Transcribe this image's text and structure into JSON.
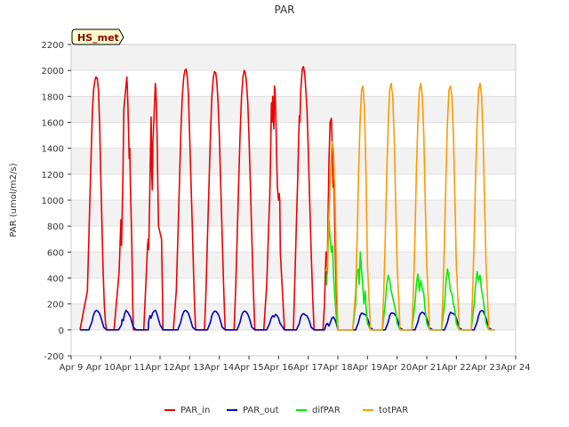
{
  "chart_data": {
    "type": "line",
    "title": "PAR",
    "xlabel": "",
    "ylabel": "PAR (umol/m2/s)",
    "xlim": [
      9,
      24
    ],
    "ylim": [
      -200,
      2200
    ],
    "x_ticks": [
      {
        "value": 9,
        "label": "Apr 9"
      },
      {
        "value": 10,
        "label": "Apr 10"
      },
      {
        "value": 11,
        "label": "Apr 11"
      },
      {
        "value": 12,
        "label": "Apr 12"
      },
      {
        "value": 13,
        "label": "Apr 13"
      },
      {
        "value": 14,
        "label": "Apr 14"
      },
      {
        "value": 15,
        "label": "Apr 15"
      },
      {
        "value": 16,
        "label": "Apr 16"
      },
      {
        "value": 17,
        "label": "Apr 17"
      },
      {
        "value": 18,
        "label": "Apr 18"
      },
      {
        "value": 19,
        "label": "Apr 19"
      },
      {
        "value": 20,
        "label": "Apr 20"
      },
      {
        "value": 21,
        "label": "Apr 21"
      },
      {
        "value": 22,
        "label": "Apr 22"
      },
      {
        "value": 23,
        "label": "Apr 23"
      },
      {
        "value": 24,
        "label": "Apr 24"
      }
    ],
    "y_ticks": [
      -200,
      0,
      200,
      400,
      600,
      800,
      1000,
      1200,
      1400,
      1600,
      1800,
      2000,
      2200
    ],
    "annotation": "HS_met",
    "legend_position": "bottom-center",
    "series": [
      {
        "name": "PAR_in",
        "color": "#ee0000",
        "x": [
          9.3,
          9.55,
          9.62,
          9.68,
          9.72,
          9.76,
          9.8,
          9.84,
          9.88,
          9.92,
          9.96,
          10.0,
          10.04,
          10.08,
          10.12,
          10.16,
          10.2,
          10.45,
          10.62,
          10.68,
          10.7,
          10.72,
          10.75,
          10.78,
          10.8,
          10.84,
          10.88,
          10.9,
          10.92,
          10.94,
          10.96,
          10.98,
          11.0,
          11.05,
          11.08,
          11.1,
          11.2,
          11.45,
          11.58,
          11.6,
          11.62,
          11.65,
          11.68,
          11.7,
          11.72,
          11.74,
          11.76,
          11.8,
          11.84,
          11.86,
          11.88,
          11.9,
          11.92,
          11.95,
          12.0,
          12.05,
          12.08,
          12.1,
          12.2,
          12.45,
          12.55,
          12.6,
          12.65,
          12.7,
          12.75,
          12.8,
          12.84,
          12.88,
          12.92,
          12.96,
          13.0,
          13.05,
          13.1,
          13.15,
          13.2,
          13.5,
          13.55,
          13.6,
          13.65,
          13.7,
          13.75,
          13.8,
          13.84,
          13.88,
          13.92,
          13.96,
          14.0,
          14.05,
          14.1,
          14.15,
          14.2,
          14.5,
          14.55,
          14.6,
          14.65,
          14.7,
          14.75,
          14.8,
          14.84,
          14.88,
          14.92,
          14.96,
          15.0,
          15.05,
          15.1,
          15.15,
          15.2,
          15.5,
          15.6,
          15.65,
          15.68,
          15.7,
          15.72,
          15.74,
          15.76,
          15.78,
          15.8,
          15.82,
          15.84,
          15.86,
          15.88,
          15.9,
          15.92,
          15.94,
          15.96,
          16.0,
          16.02,
          16.04,
          16.06,
          16.2,
          16.5,
          16.55,
          16.6,
          16.65,
          16.68,
          16.7,
          16.72,
          16.75,
          16.8,
          16.84,
          16.88,
          16.92,
          16.96,
          17.0,
          17.05,
          17.1,
          17.15,
          17.2,
          17.5,
          17.55,
          17.58,
          17.6,
          17.62,
          17.65,
          17.68,
          17.7,
          17.74,
          17.78,
          17.8,
          17.82,
          17.84,
          17.86,
          17.88,
          17.9,
          17.95,
          18.0
        ],
        "y": [
          0,
          300,
          900,
          1400,
          1700,
          1850,
          1920,
          1950,
          1940,
          1850,
          1600,
          1200,
          800,
          450,
          200,
          50,
          0,
          0,
          450,
          850,
          650,
          850,
          1200,
          1700,
          1750,
          1850,
          1950,
          1850,
          1700,
          1500,
          1320,
          1400,
          1100,
          650,
          200,
          0,
          0,
          0,
          650,
          700,
          620,
          1000,
          1400,
          1640,
          1200,
          1080,
          1450,
          1650,
          1900,
          1850,
          1700,
          1500,
          1200,
          800,
          750,
          700,
          300,
          0,
          0,
          0,
          300,
          700,
          1100,
          1500,
          1800,
          1950,
          2000,
          2010,
          1950,
          1800,
          1500,
          1100,
          700,
          300,
          0,
          0,
          300,
          700,
          1100,
          1500,
          1800,
          1950,
          1990,
          1980,
          1900,
          1750,
          1500,
          1100,
          700,
          300,
          0,
          0,
          300,
          700,
          1100,
          1500,
          1800,
          1950,
          2000,
          1980,
          1900,
          1750,
          1500,
          1100,
          700,
          300,
          0,
          0,
          350,
          700,
          900,
          1000,
          1200,
          1500,
          1750,
          1600,
          1800,
          1700,
          1550,
          1880,
          1850,
          1700,
          1500,
          1300,
          1100,
          1000,
          1050,
          1000,
          600,
          0,
          0,
          400,
          800,
          1200,
          1500,
          1650,
          1600,
          1850,
          2010,
          2030,
          1980,
          1850,
          1700,
          1400,
          1000,
          600,
          250,
          0,
          0,
          200,
          450,
          600,
          350,
          550,
          1000,
          1300,
          1600,
          1630,
          1500,
          1300,
          1100,
          1150,
          1050,
          700,
          300,
          0
        ]
      },
      {
        "name": "PAR_out",
        "color": "#0000cc",
        "x": [
          9.3,
          9.6,
          9.7,
          9.75,
          9.8,
          9.85,
          9.9,
          9.95,
          10.0,
          10.05,
          10.1,
          10.2,
          10.6,
          10.7,
          10.72,
          10.76,
          10.8,
          10.85,
          10.9,
          10.95,
          11.0,
          11.05,
          11.1,
          11.2,
          11.6,
          11.62,
          11.66,
          11.7,
          11.75,
          11.8,
          11.85,
          11.9,
          11.95,
          12.0,
          12.1,
          12.6,
          12.7,
          12.75,
          12.8,
          12.85,
          12.9,
          12.95,
          13.0,
          13.05,
          13.1,
          13.2,
          13.6,
          13.7,
          13.75,
          13.8,
          13.85,
          13.9,
          13.95,
          14.0,
          14.05,
          14.1,
          14.2,
          14.6,
          14.7,
          14.75,
          14.8,
          14.85,
          14.9,
          14.95,
          15.0,
          15.05,
          15.1,
          15.2,
          15.6,
          15.7,
          15.75,
          15.8,
          15.85,
          15.9,
          15.95,
          16.0,
          16.05,
          16.2,
          16.6,
          16.7,
          16.75,
          16.8,
          16.85,
          16.9,
          16.95,
          17.0,
          17.05,
          17.1,
          17.2,
          17.55,
          17.6,
          17.65,
          17.7,
          17.75,
          17.8,
          17.85,
          17.9,
          17.95,
          18.0,
          18.6,
          18.7,
          18.75,
          18.8,
          18.85,
          18.9,
          18.95,
          19.0,
          19.05,
          19.1,
          19.2,
          19.6,
          19.7,
          19.75,
          19.8,
          19.85,
          19.9,
          19.95,
          20.0,
          20.05,
          20.1,
          20.2,
          20.6,
          20.7,
          20.75,
          20.8,
          20.85,
          20.9,
          20.95,
          21.0,
          21.05,
          21.1,
          21.2,
          21.6,
          21.7,
          21.75,
          21.8,
          21.85,
          21.9,
          21.95,
          22.0,
          22.05,
          22.1,
          22.2,
          22.6,
          22.7,
          22.75,
          22.8,
          22.85,
          22.9,
          22.95,
          23.0,
          23.05,
          23.1,
          23.2
        ],
        "y": [
          0,
          0,
          60,
          110,
          140,
          150,
          145,
          130,
          100,
          60,
          20,
          0,
          0,
          40,
          80,
          70,
          120,
          150,
          140,
          120,
          100,
          60,
          20,
          0,
          0,
          70,
          110,
          90,
          130,
          145,
          150,
          120,
          80,
          40,
          0,
          0,
          60,
          110,
          140,
          150,
          145,
          130,
          100,
          60,
          20,
          0,
          0,
          60,
          110,
          135,
          145,
          140,
          125,
          100,
          60,
          20,
          0,
          0,
          60,
          110,
          135,
          145,
          140,
          125,
          100,
          60,
          20,
          0,
          0,
          50,
          90,
          110,
          100,
          120,
          110,
          90,
          50,
          0,
          0,
          50,
          100,
          120,
          125,
          115,
          110,
          90,
          60,
          20,
          0,
          0,
          40,
          50,
          30,
          60,
          90,
          100,
          80,
          50,
          0,
          0,
          60,
          110,
          130,
          125,
          120,
          115,
          90,
          50,
          15,
          0,
          0,
          60,
          110,
          130,
          130,
          125,
          110,
          90,
          50,
          15,
          0,
          0,
          60,
          110,
          130,
          135,
          130,
          115,
          90,
          50,
          15,
          0,
          0,
          60,
          110,
          135,
          130,
          125,
          115,
          90,
          50,
          15,
          0,
          0,
          60,
          110,
          140,
          150,
          145,
          120,
          90,
          50,
          15,
          0
        ]
      },
      {
        "name": "difPAR",
        "color": "#00ee00",
        "x": [
          17.6,
          17.65,
          17.7,
          17.74,
          17.78,
          17.82,
          17.86,
          17.9,
          17.95,
          18.0,
          18.1,
          18.5,
          18.6,
          18.65,
          18.7,
          18.72,
          18.76,
          18.8,
          18.84,
          18.88,
          18.92,
          18.96,
          19.0,
          19.1,
          19.5,
          19.6,
          19.65,
          19.7,
          19.75,
          19.8,
          19.85,
          19.9,
          19.95,
          20.0,
          20.1,
          20.5,
          20.6,
          20.65,
          20.7,
          20.75,
          20.8,
          20.85,
          20.9,
          20.95,
          21.0,
          21.1,
          21.5,
          21.6,
          21.65,
          21.7,
          21.75,
          21.8,
          21.85,
          21.9,
          21.95,
          22.0,
          22.1,
          22.5,
          22.6,
          22.65,
          22.7,
          22.75,
          22.8,
          22.85,
          22.9,
          22.95,
          23.0,
          23.1
        ],
        "y": [
          350,
          450,
          850,
          700,
          600,
          650,
          400,
          250,
          100,
          0,
          0,
          0,
          200,
          450,
          470,
          350,
          600,
          450,
          350,
          200,
          300,
          150,
          50,
          0,
          0,
          200,
          350,
          420,
          380,
          300,
          250,
          200,
          150,
          50,
          0,
          0,
          200,
          350,
          430,
          300,
          380,
          320,
          280,
          150,
          50,
          0,
          0,
          200,
          380,
          470,
          400,
          300,
          280,
          200,
          150,
          50,
          0,
          0,
          200,
          350,
          450,
          380,
          420,
          300,
          250,
          150,
          50,
          0
        ]
      },
      {
        "name": "totPAR",
        "color": "#ff9900",
        "x": [
          17.6,
          17.65,
          17.7,
          17.75,
          17.8,
          17.85,
          17.9,
          17.95,
          18.0,
          18.1,
          18.5,
          18.6,
          18.65,
          18.7,
          18.75,
          18.8,
          18.85,
          18.9,
          18.95,
          19.0,
          19.1,
          19.5,
          19.55,
          19.6,
          19.65,
          19.7,
          19.75,
          19.8,
          19.85,
          19.9,
          19.95,
          20.0,
          20.1,
          20.5,
          20.55,
          20.6,
          20.65,
          20.7,
          20.75,
          20.8,
          20.85,
          20.9,
          20.95,
          21.0,
          21.1,
          21.5,
          21.55,
          21.6,
          21.65,
          21.7,
          21.75,
          21.8,
          21.85,
          21.9,
          21.95,
          22.0,
          22.1,
          22.5,
          22.55,
          22.6,
          22.65,
          22.7,
          22.75,
          22.8,
          22.85,
          22.9,
          22.95,
          23.0,
          23.1,
          23.3
        ],
        "y": [
          450,
          500,
          900,
          1200,
          1450,
          1400,
          1050,
          500,
          0,
          0,
          0,
          300,
          700,
          1200,
          1600,
          1850,
          1880,
          1700,
          1200,
          500,
          0,
          0,
          300,
          700,
          1200,
          1600,
          1850,
          1900,
          1800,
          1500,
          1000,
          500,
          0,
          0,
          300,
          700,
          1200,
          1600,
          1850,
          1900,
          1800,
          1500,
          1000,
          500,
          0,
          0,
          300,
          700,
          1200,
          1600,
          1850,
          1880,
          1800,
          1500,
          1000,
          500,
          0,
          0,
          300,
          700,
          1200,
          1600,
          1850,
          1900,
          1800,
          1500,
          1000,
          500,
          0,
          0
        ]
      }
    ]
  }
}
